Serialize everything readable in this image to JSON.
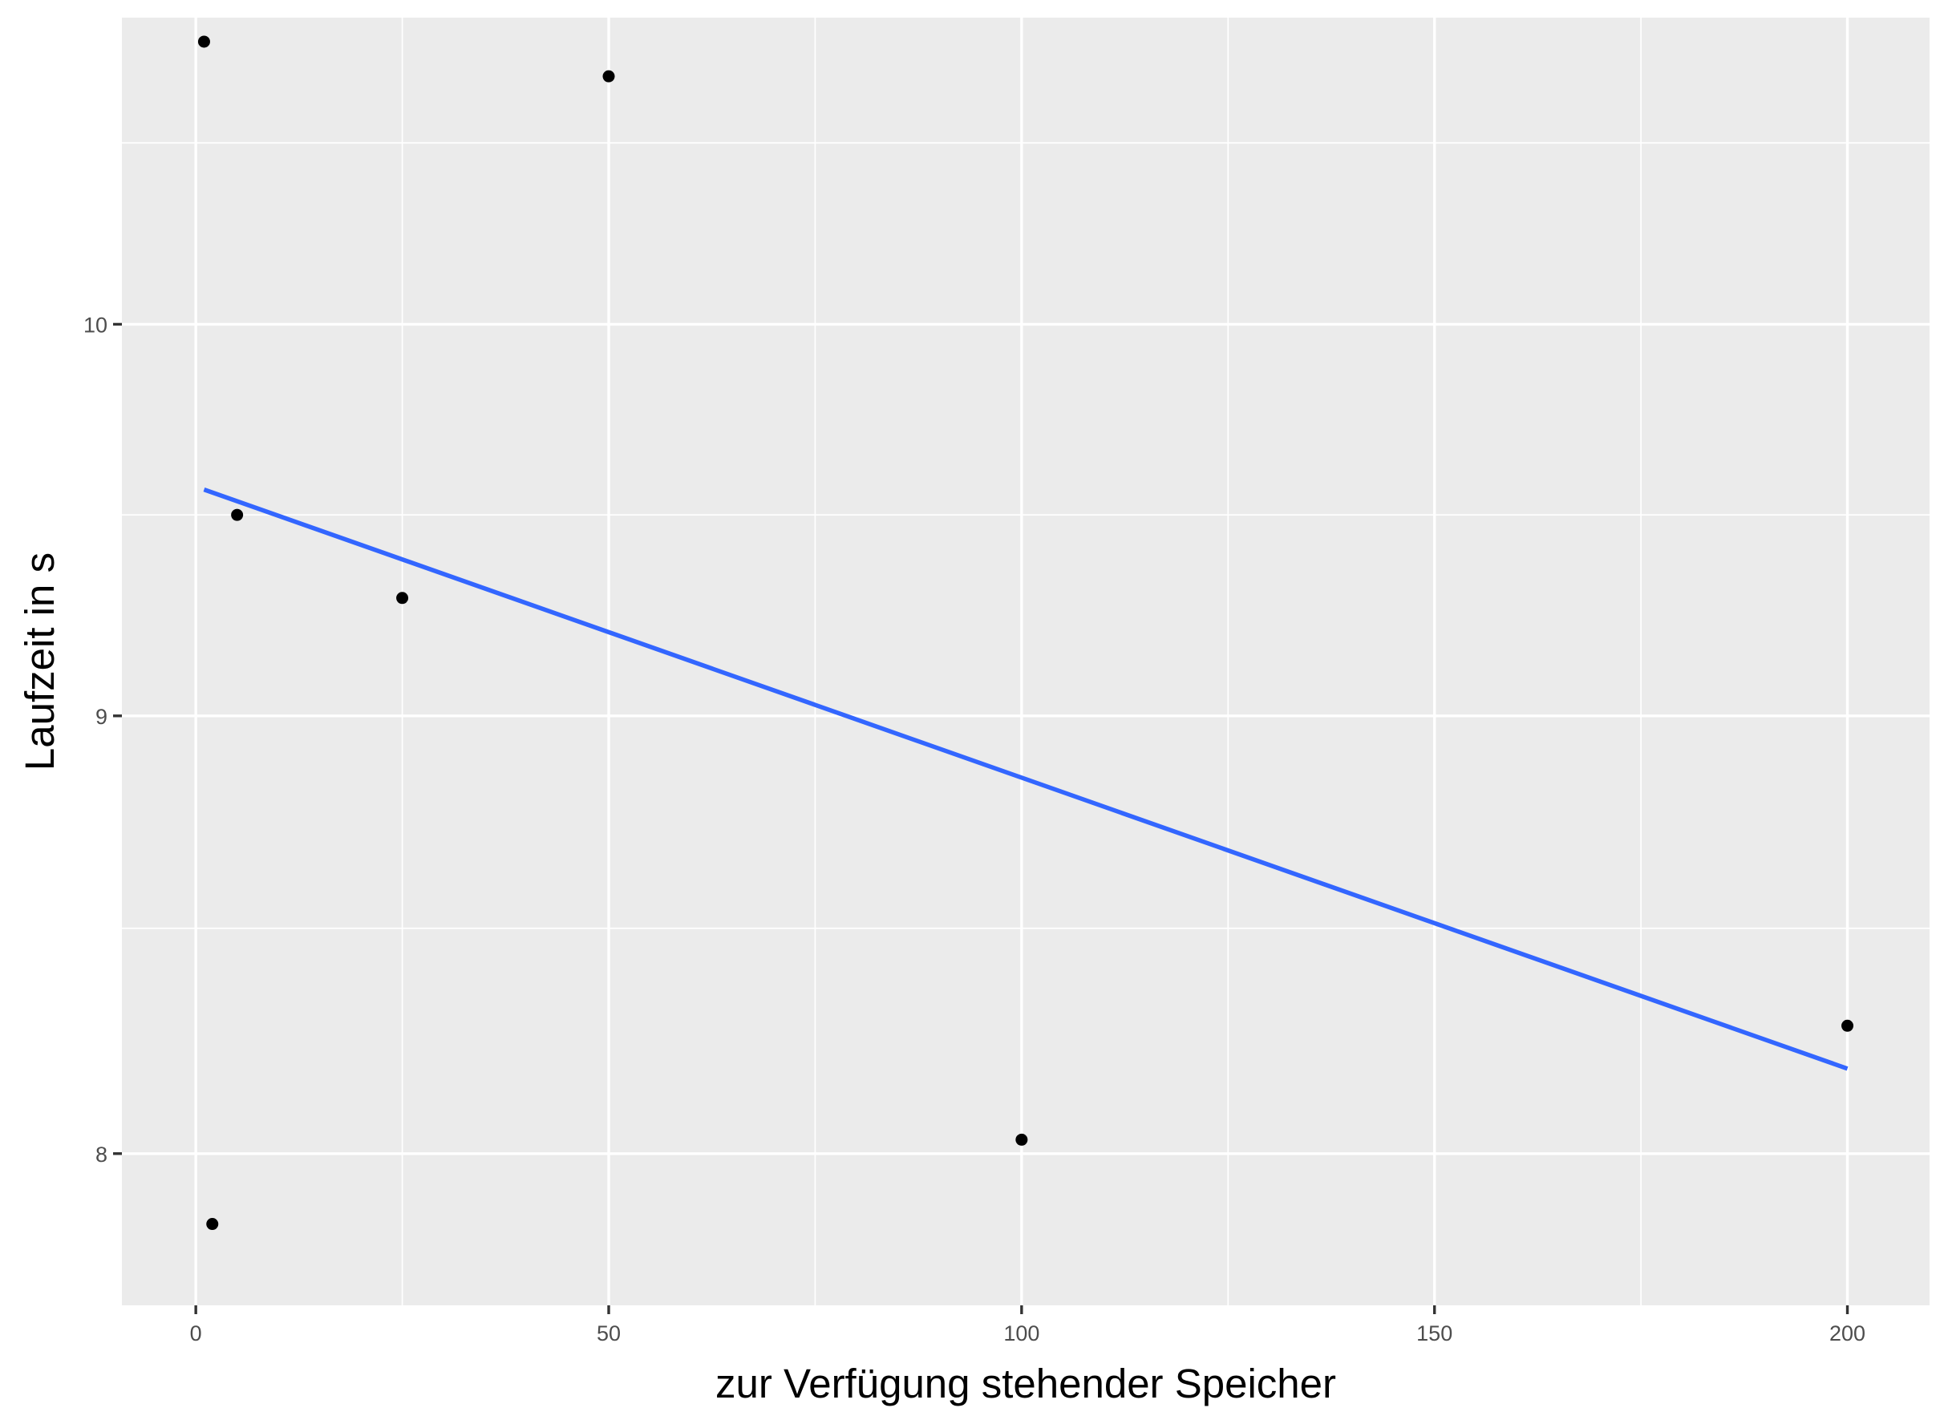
{
  "chart_data": {
    "type": "scatter",
    "title": "",
    "xlabel": "zur Verfügung stehender Speicher",
    "ylabel": "Laufzeit in s",
    "xlim": [
      -8.95,
      209.95
    ],
    "ylim": [
      7.68,
      10.86
    ],
    "x_scale": "linear",
    "y_scale": "log10",
    "x_ticks": [
      0,
      50,
      100,
      150,
      200
    ],
    "x_minor_ticks": [
      25,
      75,
      125,
      175
    ],
    "y_ticks": [
      8,
      9,
      10
    ],
    "y_minor_ticks": [
      8.5,
      9.5,
      10.5
    ],
    "x_tick_labels": [
      "0",
      "50",
      "100",
      "150",
      "200"
    ],
    "y_tick_labels": [
      "8",
      "9",
      "10"
    ],
    "grid": true,
    "legend": "none",
    "points": [
      {
        "x": 1,
        "y": 10.79
      },
      {
        "x": 2,
        "y": 7.85
      },
      {
        "x": 5,
        "y": 9.5
      },
      {
        "x": 25,
        "y": 9.29
      },
      {
        "x": 50,
        "y": 10.69
      },
      {
        "x": 100,
        "y": 8.03
      },
      {
        "x": 200,
        "y": 8.28
      }
    ],
    "fit_line": {
      "method": "lm",
      "x_range": [
        1,
        200
      ],
      "y_at_start": 9.565,
      "y_at_end": 8.185
    },
    "colors": {
      "panel_background": "#ebebeb",
      "grid": "#ffffff",
      "points": "#000000",
      "fit_line": "#3366ff",
      "tick_label": "#4d4d4d",
      "tick_mark": "#333333",
      "axis_title": "#000000"
    }
  }
}
